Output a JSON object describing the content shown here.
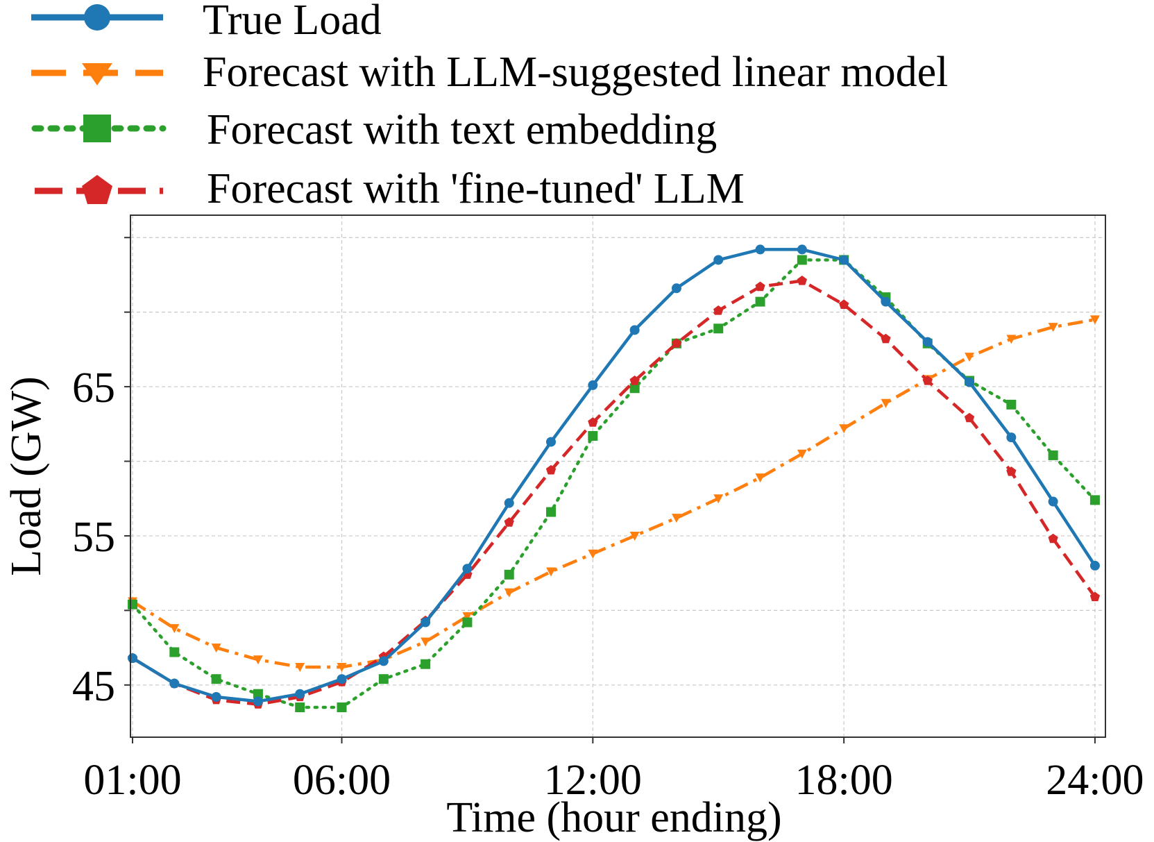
{
  "chart_data": {
    "type": "line",
    "title": "",
    "xlabel": "Time (hour ending)",
    "ylabel": "Load (GW)",
    "x": [
      1,
      2,
      3,
      4,
      5,
      6,
      7,
      8,
      9,
      10,
      11,
      12,
      13,
      14,
      15,
      16,
      17,
      18,
      19,
      20,
      21,
      22,
      23,
      24
    ],
    "xlim": [
      0.95,
      24.25
    ],
    "ylim": [
      41.5,
      76.5
    ],
    "x_ticks": [
      1,
      6,
      12,
      18,
      24
    ],
    "x_tick_labels": [
      "01:00",
      "06:00",
      "12:00",
      "18:00",
      "24:00"
    ],
    "y_ticks": [
      45,
      55,
      65
    ],
    "y_tick_labels": [
      "45",
      "55",
      "65"
    ],
    "y_minor_grid": [
      50,
      60,
      70,
      75
    ],
    "grid": true,
    "legend_position": "top, outside plot area",
    "series": [
      {
        "name": "True Load",
        "color": "#1f77b4",
        "line_style": "solid",
        "marker": "circle",
        "values": [
          46.8,
          45.1,
          44.2,
          43.9,
          44.4,
          45.4,
          46.6,
          49.2,
          52.8,
          57.2,
          61.3,
          65.1,
          68.8,
          71.6,
          73.5,
          74.2,
          74.2,
          73.5,
          70.7,
          68.0,
          65.3,
          61.6,
          57.3,
          53.0
        ]
      },
      {
        "name": "Forecast with LLM-suggested linear model",
        "color": "#ff7f0e",
        "line_style": "dash-dot",
        "marker": "triangle-down",
        "values": [
          50.6,
          48.8,
          47.5,
          46.7,
          46.2,
          46.2,
          46.7,
          47.9,
          49.6,
          51.2,
          52.6,
          53.8,
          55.0,
          56.2,
          57.5,
          58.9,
          60.5,
          62.2,
          63.9,
          65.5,
          67.0,
          68.2,
          69.0,
          69.5
        ]
      },
      {
        "name": "Forecast with text embedding",
        "color": "#2ca02c",
        "line_style": "dotted",
        "marker": "square",
        "values": [
          50.4,
          47.2,
          45.4,
          44.4,
          43.5,
          43.5,
          45.4,
          46.4,
          49.2,
          52.4,
          56.6,
          61.7,
          64.9,
          67.9,
          68.9,
          70.7,
          73.5,
          73.5,
          71.0,
          67.9,
          65.4,
          63.8,
          60.4,
          57.4
        ]
      },
      {
        "name": "Forecast with 'fine-tuned' LLM",
        "color": "#d62728",
        "line_style": "dashed",
        "marker": "pentagon",
        "values": [
          46.8,
          45.1,
          44.0,
          43.7,
          44.2,
          45.2,
          46.9,
          49.3,
          52.4,
          55.9,
          59.4,
          62.6,
          65.4,
          67.9,
          70.1,
          71.7,
          72.1,
          70.5,
          68.2,
          65.4,
          62.9,
          59.3,
          54.8,
          50.9
        ]
      }
    ]
  }
}
